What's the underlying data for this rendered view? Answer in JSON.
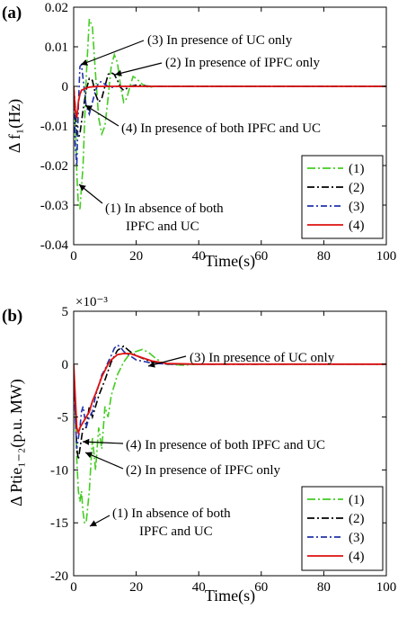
{
  "chart_data": [
    {
      "type": "line",
      "panel_label": "(a)",
      "xlabel": "Time(s)",
      "ylabel": "Δ f₁(Hz)",
      "xlim": [
        0,
        100
      ],
      "ylim": [
        -0.04,
        0.02
      ],
      "xticks": [
        "0",
        "20",
        "40",
        "60",
        "80",
        "100"
      ],
      "yticks": [
        "0.02",
        "0.01",
        "0",
        "-0.01",
        "-0.02",
        "-0.03",
        "-0.04"
      ],
      "exponent": "",
      "legend_position": "bottom-right",
      "grid": false,
      "legend": [
        "(1)",
        "(2)",
        "(3)",
        "(4)"
      ],
      "annotations": [
        "(3) In presence of UC only",
        "(2) In presence of IPFC only",
        "(4) In presence of both IPFC and UC",
        "(1) In absence of both",
        "IPFC and UC"
      ],
      "series": [
        {
          "name": "(1)",
          "color": "#44cc22",
          "dash": "9,3,2,3",
          "x": [
            0,
            0.5,
            1,
            1.5,
            2,
            3,
            4,
            5,
            6,
            7,
            8,
            9,
            10,
            11,
            12,
            13,
            14,
            15,
            16,
            17,
            18,
            19,
            20,
            22,
            24,
            26,
            30,
            40,
            60,
            80,
            100
          ],
          "y": [
            0,
            -0.008,
            -0.022,
            -0.03,
            -0.031,
            -0.02,
            0.002,
            0.017,
            0.015,
            0.003,
            -0.008,
            -0.012,
            -0.01,
            -0.003,
            0.005,
            0.008,
            0.006,
            0.0,
            -0.004,
            -0.003,
            0.0,
            0.0025,
            0.002,
            0.0005,
            -0.0003,
            0.0,
            0,
            0,
            0,
            0,
            0
          ]
        },
        {
          "name": "(2)",
          "color": "#000000",
          "dash": "8,3,2,3",
          "x": [
            0,
            0.5,
            1,
            1.5,
            2,
            3,
            4,
            5,
            6,
            7,
            8,
            9,
            10,
            11,
            12,
            13,
            14,
            15,
            16,
            18,
            20,
            25,
            30,
            40,
            60,
            80,
            100
          ],
          "y": [
            0,
            -0.005,
            -0.012,
            -0.013,
            -0.012,
            -0.006,
            -0.001,
            0.002,
            0.0015,
            -0.002,
            -0.004,
            -0.003,
            0.0,
            0.003,
            0.0035,
            0.003,
            0.0015,
            -0.0003,
            -0.001,
            0.0,
            0.0003,
            0,
            0,
            0,
            0,
            0,
            0
          ]
        },
        {
          "name": "(3)",
          "color": "#2233aa",
          "dash": "7,3,2,3",
          "x": [
            0,
            0.5,
            1,
            1.5,
            2,
            2.5,
            3,
            4,
            5,
            6,
            7,
            8,
            9,
            10,
            11,
            12,
            14,
            16,
            20,
            25,
            30,
            40,
            60,
            80,
            100
          ],
          "y": [
            0,
            -0.015,
            -0.02,
            -0.005,
            0.005,
            0.0055,
            0.002,
            -0.005,
            -0.007,
            -0.004,
            -0.001,
            0.001,
            0.0012,
            0.0005,
            0.0,
            -0.0003,
            0.0,
            0.0,
            0,
            0,
            0,
            0,
            0,
            0,
            0
          ]
        },
        {
          "name": "(4)",
          "color": "#dd1111",
          "dash": "",
          "x": [
            0,
            0.5,
            1,
            1.5,
            2,
            2.5,
            3,
            4,
            5,
            6,
            8,
            10,
            15,
            20,
            30,
            40,
            60,
            80,
            100
          ],
          "y": [
            0,
            -0.006,
            -0.008,
            -0.004,
            -0.002,
            -0.001,
            -0.0008,
            -0.0004,
            -0.0002,
            -0.0001,
            0.0,
            0.0,
            0,
            0,
            0,
            0,
            0,
            0,
            0
          ]
        }
      ]
    },
    {
      "type": "line",
      "panel_label": "(b)",
      "xlabel": "Time(s)",
      "ylabel": "Δ Ptie₁₋₂(p.u. MW)",
      "xlim": [
        0,
        100
      ],
      "ylim": [
        -20,
        5
      ],
      "xticks": [
        "0",
        "20",
        "40",
        "60",
        "80",
        "100"
      ],
      "yticks": [
        "5",
        "0",
        "-5",
        "-10",
        "-15",
        "-20"
      ],
      "exponent": "×10⁻³",
      "legend_position": "bottom-right",
      "grid": false,
      "legend": [
        "(1)",
        "(2)",
        "(3)",
        "(4)"
      ],
      "annotations": [
        "(3) In presence of UC only",
        "(4) In presence of both IPFC and UC",
        "(2) In presence of IPFC only",
        "(1) In absence of both",
        "IPFC and UC"
      ],
      "series": [
        {
          "name": "(1)",
          "color": "#44cc22",
          "dash": "9,3,2,3",
          "x": [
            0,
            0.5,
            1,
            1.5,
            2,
            2.5,
            3,
            3.5,
            4,
            5,
            6,
            7,
            8,
            9,
            10,
            11,
            12,
            14,
            16,
            18,
            20,
            22,
            24,
            26,
            28,
            30,
            35,
            40,
            60,
            80,
            100
          ],
          "y": [
            0,
            -4,
            -9,
            -12,
            -13,
            -12,
            -14,
            -15,
            -15,
            -12,
            -7,
            -10,
            -6,
            -8,
            -4,
            -5,
            -3,
            -1,
            0.2,
            1,
            1.2,
            1.4,
            1.1,
            0.6,
            0.2,
            0.0,
            -0.1,
            0,
            0,
            0,
            0
          ]
        },
        {
          "name": "(2)",
          "color": "#000000",
          "dash": "8,3,2,3",
          "x": [
            0,
            0.5,
            1,
            1.5,
            2,
            2.5,
            3,
            4,
            5,
            6,
            7,
            8,
            10,
            12,
            14,
            16,
            18,
            20,
            25,
            30,
            40,
            60,
            80,
            100
          ],
          "y": [
            0,
            -4,
            -8,
            -9,
            -8,
            -7,
            -6,
            -6,
            -4,
            -5,
            -4,
            -3,
            -1.5,
            0.2,
            1.3,
            1.7,
            1.2,
            0.8,
            0.2,
            0,
            0,
            0,
            0,
            0
          ]
        },
        {
          "name": "(3)",
          "color": "#2233aa",
          "dash": "7,3,2,3",
          "x": [
            0,
            0.5,
            1,
            1.5,
            2,
            2.5,
            3,
            4,
            5,
            6,
            7,
            8,
            9,
            10,
            11,
            12,
            13,
            14,
            15,
            16,
            18,
            20,
            25,
            30,
            40,
            60,
            80,
            100
          ],
          "y": [
            0,
            -5,
            -8,
            -7,
            -6,
            -4.5,
            -4,
            -6,
            -5,
            -4.5,
            -3,
            -2,
            -1,
            -0.5,
            0.2,
            0.8,
            1.5,
            1.8,
            1.6,
            1.2,
            0.8,
            0.4,
            0.1,
            0,
            0,
            0,
            0,
            0
          ]
        },
        {
          "name": "(4)",
          "color": "#dd1111",
          "dash": "",
          "x": [
            0,
            0.5,
            1,
            1.5,
            2,
            3,
            4,
            5,
            6,
            7,
            8,
            9,
            10,
            11,
            12,
            14,
            16,
            18,
            20,
            22,
            25,
            30,
            40,
            60,
            80,
            100
          ],
          "y": [
            0,
            -3,
            -6,
            -6.5,
            -6,
            -5.5,
            -5,
            -4.5,
            -3.5,
            -2.8,
            -2,
            -1.2,
            -0.6,
            0.0,
            0.4,
            0.9,
            1.0,
            1.0,
            0.8,
            0.6,
            0.3,
            0.05,
            0,
            0,
            0,
            0
          ]
        }
      ]
    }
  ]
}
